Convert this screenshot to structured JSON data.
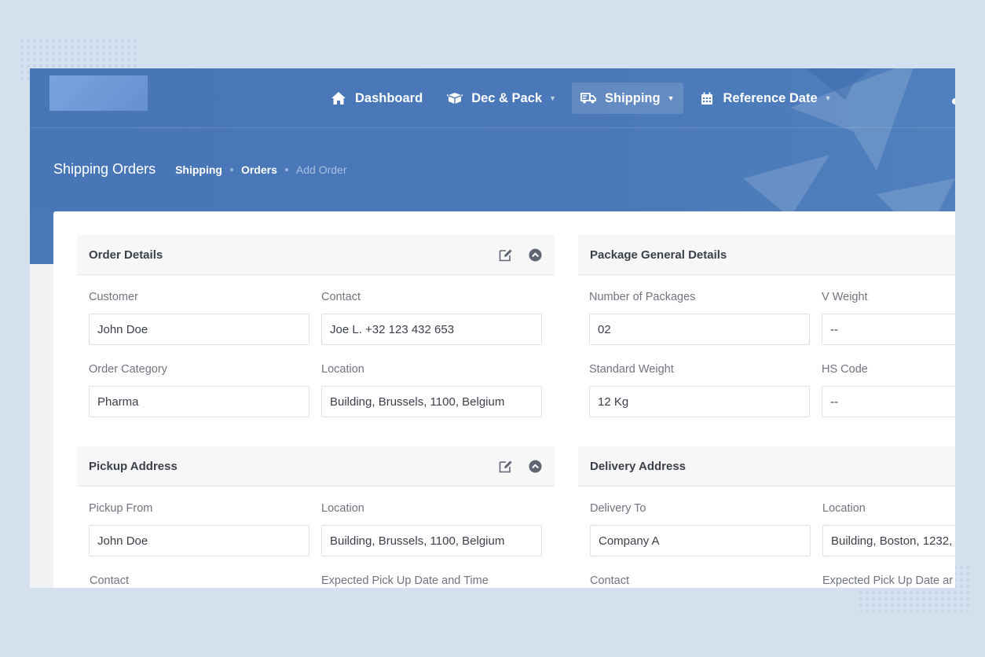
{
  "nav": {
    "items": [
      {
        "label": "Dashboard"
      },
      {
        "label": "Dec & Pack"
      },
      {
        "label": "Shipping"
      },
      {
        "label": "Reference Date"
      }
    ]
  },
  "page": {
    "title": "Shipping Orders",
    "breadcrumb": [
      "Shipping",
      "Orders",
      "Add Order"
    ]
  },
  "panels": {
    "order_details": {
      "title": "Order Details",
      "fields": [
        {
          "label": "Customer",
          "value": "John Doe"
        },
        {
          "label": "Contact",
          "value": "Joe L. +32 123 432 653"
        },
        {
          "label": "Order Category",
          "value": "Pharma"
        },
        {
          "label": "Location",
          "value": "Building, Brussels, 1100, Belgium"
        }
      ]
    },
    "package_details": {
      "title": "Package General Details",
      "fields": [
        {
          "label": "Number of Packages",
          "value": "02"
        },
        {
          "label": "V Weight",
          "value": "--"
        },
        {
          "label": "Standard Weight",
          "value": "12 Kg"
        },
        {
          "label": "HS Code",
          "value": "--"
        }
      ]
    },
    "pickup_address": {
      "title": "Pickup Address",
      "fields": [
        {
          "label": "Pickup From",
          "value": "John Doe"
        },
        {
          "label": "Location",
          "value": "Building, Brussels, 1100, Belgium"
        },
        {
          "label": "Contact",
          "value": ""
        },
        {
          "label": "Expected Pick Up Date and Time",
          "value": ""
        }
      ]
    },
    "delivery_address": {
      "title": "Delivery Address",
      "fields": [
        {
          "label": "Delivery To",
          "value": "Company A"
        },
        {
          "label": "Location",
          "value": "Building, Boston, 1232,"
        },
        {
          "label": "Contact",
          "value": ""
        },
        {
          "label": "Expected Pick Up Date ar",
          "value": ""
        }
      ]
    }
  },
  "colors": {
    "banner": "#4a78b8",
    "page_background": "#d5e0ee",
    "text_dark": "#3a3f4a",
    "label": "#6f7480"
  },
  "icons": {
    "dashboard": "home-icon",
    "dec_pack": "boxes-icon",
    "shipping": "truck-icon",
    "reference_date": "calendar-icon",
    "edit": "edit-icon",
    "collapse": "chevron-up-circle-icon"
  }
}
